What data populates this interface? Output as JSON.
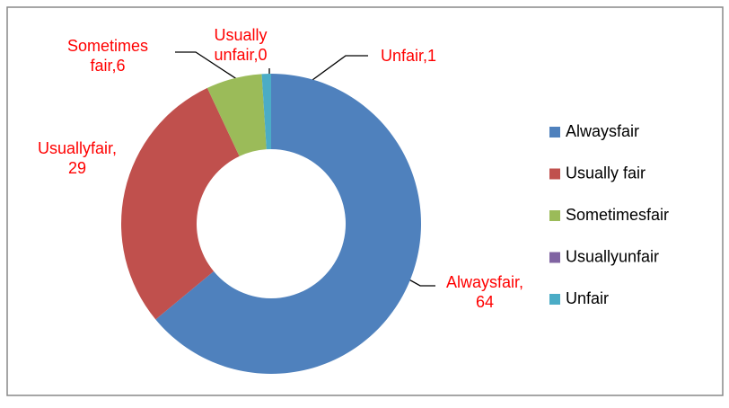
{
  "chart_data": {
    "type": "donut",
    "categories": [
      "Alwaysfair",
      "Usually fair",
      "Sometimesfair",
      "Usuallyunfair",
      "Unfair"
    ],
    "values": [
      64,
      29,
      6,
      0,
      1
    ],
    "value_labels": [
      "Alwaysfair,\n64",
      "Usuallyfair,\n29",
      "Sometimes\nfair,6",
      "Usually\nunfair,0",
      "Unfair,1"
    ],
    "colors": [
      "#4f81bd",
      "#c0504d",
      "#9bbb59",
      "#8064a2",
      "#4bacc6"
    ],
    "legend": "right"
  }
}
